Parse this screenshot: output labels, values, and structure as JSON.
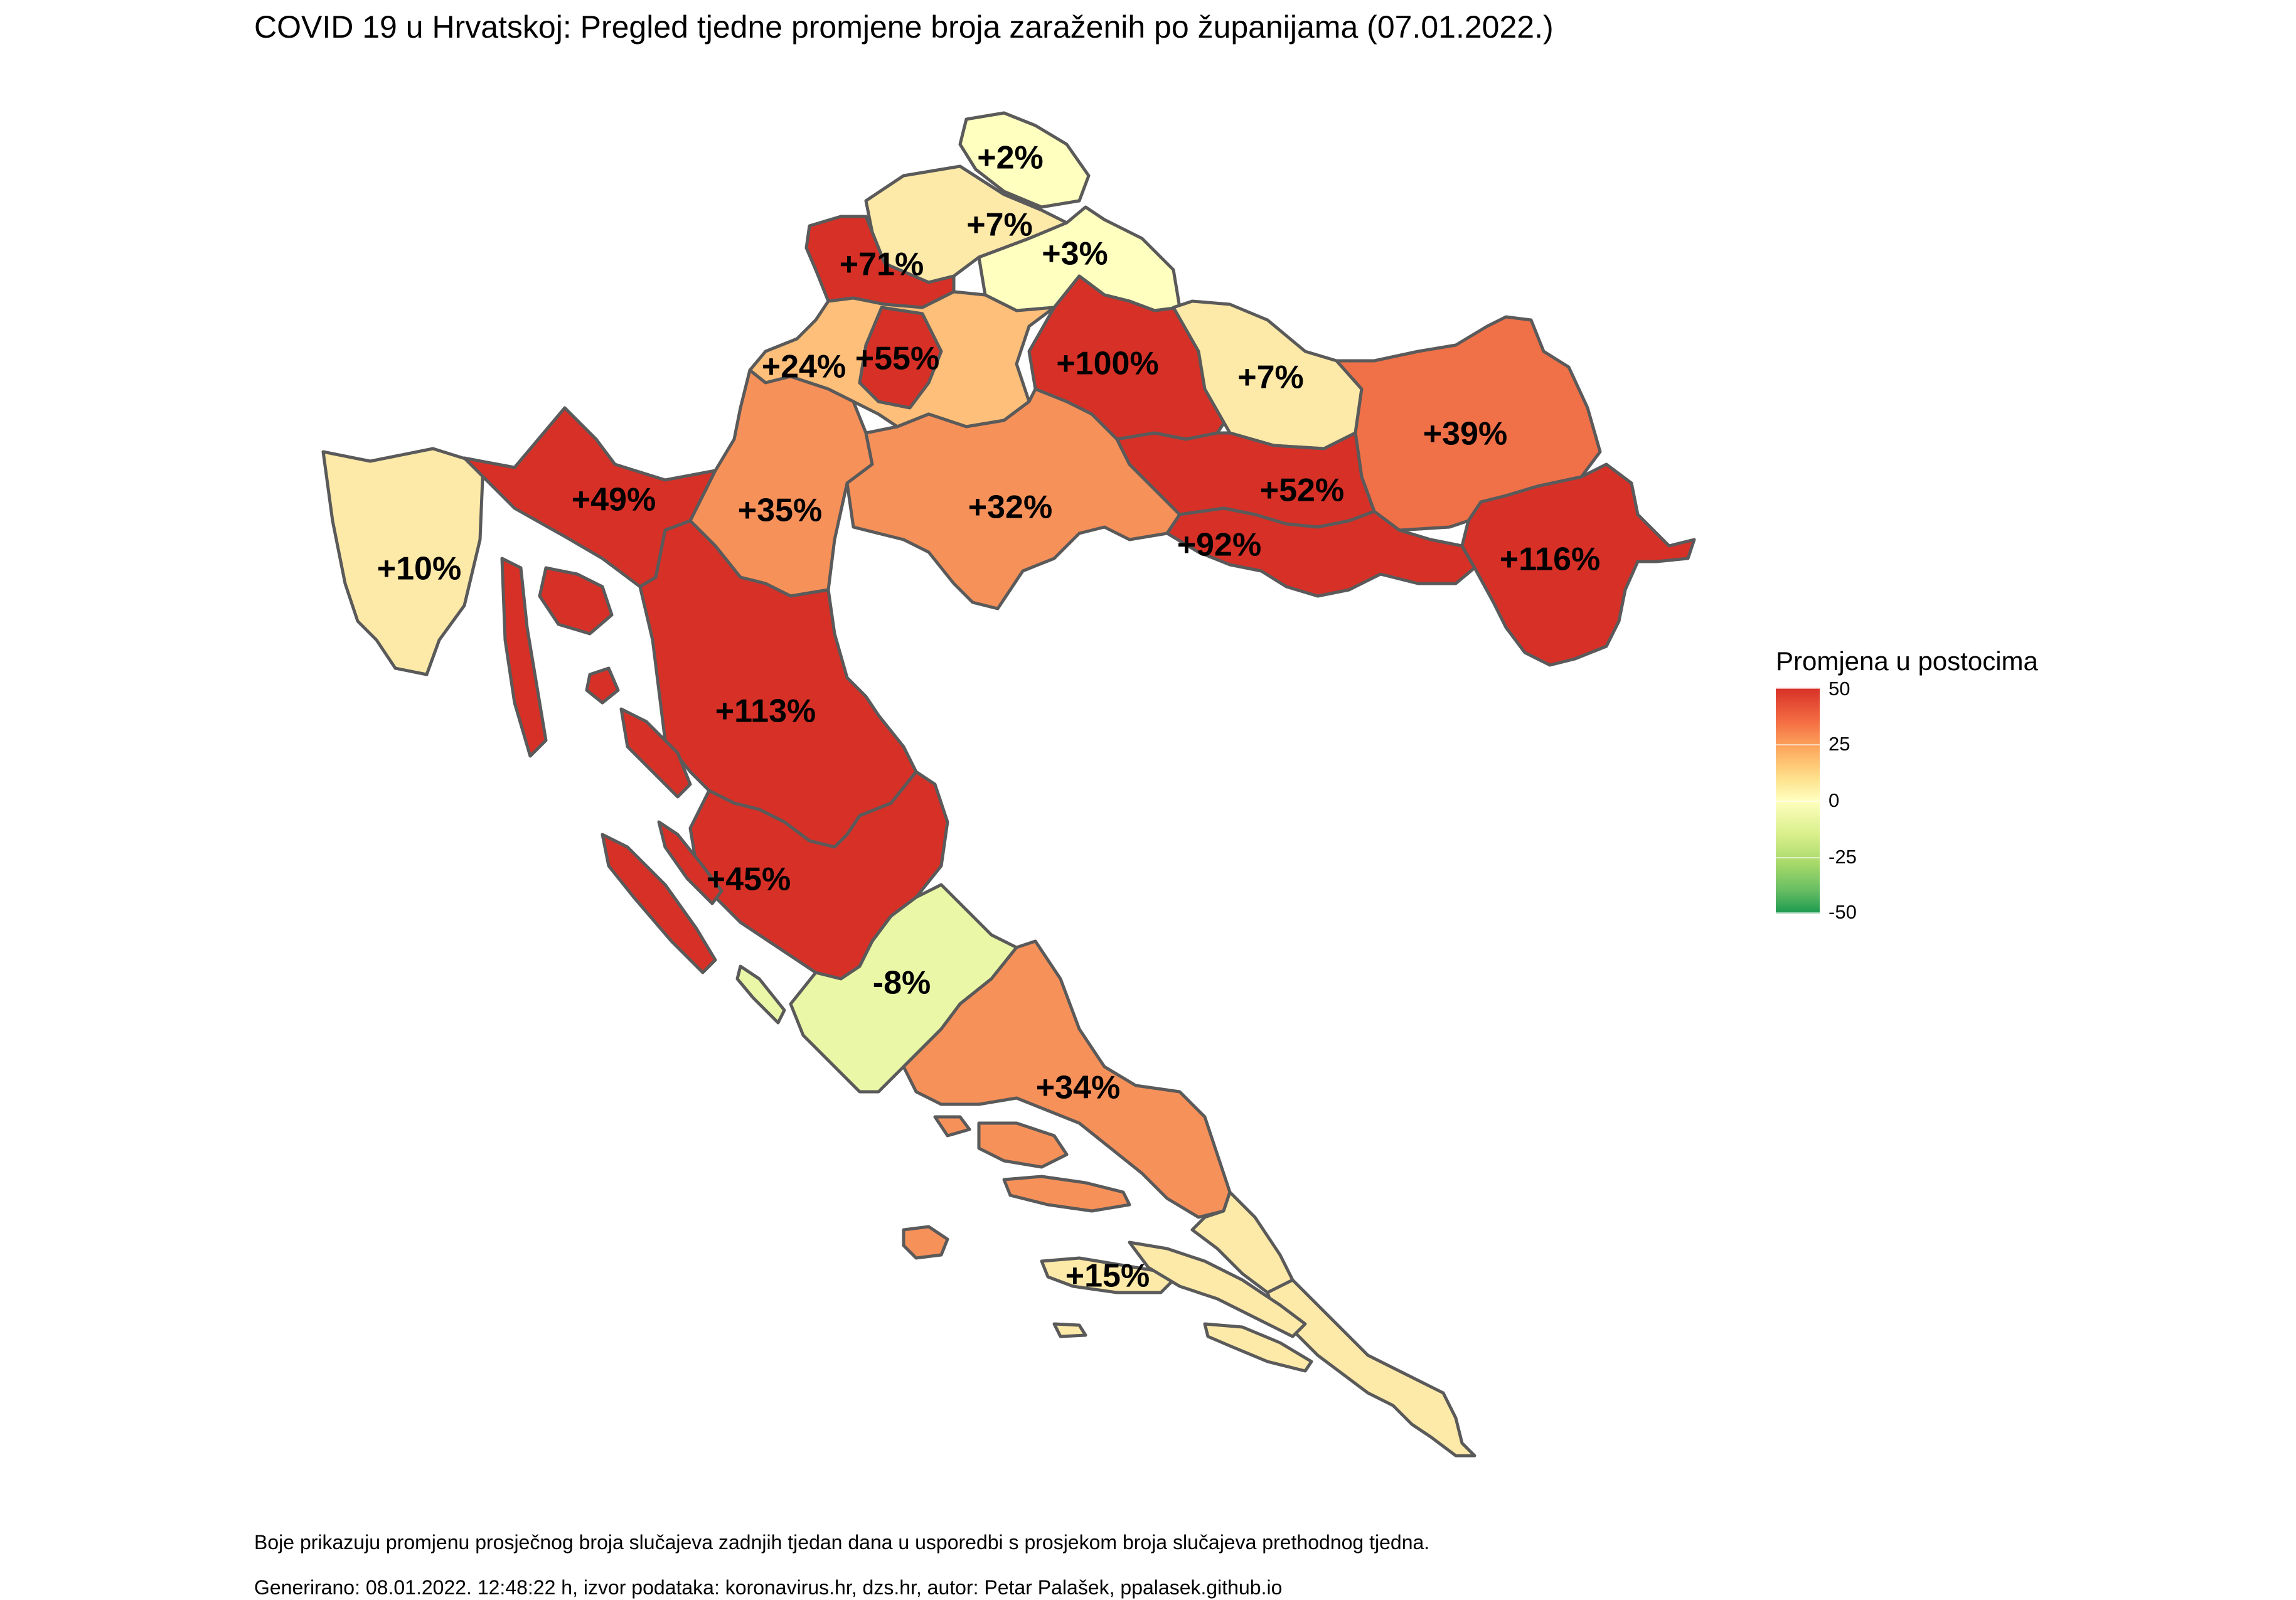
{
  "title": "COVID 19 u Hrvatskoj: Pregled tjedne promjene broja zaraženih po županijama (07.01.2022.)",
  "legend": {
    "title": "Promjena u postocima",
    "ticks": [
      "50",
      "25",
      "0",
      "-25",
      "-50"
    ],
    "min": -50,
    "max": 50
  },
  "colors": {
    "strong_increase": "#d73027",
    "increase": "#f07048",
    "moderate_increase": "#f7915a",
    "mild_increase": "#fdbf7a",
    "small_increase": "#fde9a8",
    "neutral": "#ffffbf",
    "decrease": "#eaf7a6",
    "strong_decrease": "#1a9850",
    "border": "#5a5a5a"
  },
  "regions": [
    {
      "id": "medimurska",
      "label": "+2%",
      "change": 2
    },
    {
      "id": "varazdinska",
      "label": "+7%",
      "change": 7
    },
    {
      "id": "koprivnicko-krizevacka",
      "label": "+3%",
      "change": 3
    },
    {
      "id": "krapinsko-zagorska",
      "label": "+71%",
      "change": 71
    },
    {
      "id": "zagrebacka",
      "label": "+24%",
      "change": 24
    },
    {
      "id": "grad-zagreb",
      "label": "+55%",
      "change": 55
    },
    {
      "id": "bjelovarsko-bilogorska",
      "label": "+100%",
      "change": 100
    },
    {
      "id": "viroviticko-podravska",
      "label": "+7%",
      "change": 7
    },
    {
      "id": "osjecko-baranjska",
      "label": "+39%",
      "change": 39
    },
    {
      "id": "istarska",
      "label": "+10%",
      "change": 10
    },
    {
      "id": "primorsko-goranska",
      "label": "+49%",
      "change": 49
    },
    {
      "id": "karlovacka",
      "label": "+35%",
      "change": 35
    },
    {
      "id": "sisacko-moslavacka",
      "label": "+32%",
      "change": 32
    },
    {
      "id": "pozesko-slavonska",
      "label": "+52%",
      "change": 52
    },
    {
      "id": "brodsko-posavska",
      "label": "+92%",
      "change": 92
    },
    {
      "id": "vukovarsko-srijemska",
      "label": "+116%",
      "change": 116
    },
    {
      "id": "licko-senjska",
      "label": "+113%",
      "change": 113
    },
    {
      "id": "zadarska",
      "label": "+45%",
      "change": 45
    },
    {
      "id": "sibensko-kninska",
      "label": "-8%",
      "change": -8
    },
    {
      "id": "splitsko-dalmatinska",
      "label": "+34%",
      "change": 34
    },
    {
      "id": "dubrovacko-neretvanska",
      "label": "+15%",
      "change": 15
    }
  ],
  "caption": {
    "line1": "Boje prikazuju promjenu prosječnog broja slučajeva zadnjih tjedan dana u usporedbi s prosjekom broja slučajeva prethodnog tjedna.",
    "line2": "Generirano: 08.01.2022. 12:48:22 h, izvor podataka: koronavirus.hr, dzs.hr, autor: Petar Palašek, ppalasek.github.io"
  }
}
